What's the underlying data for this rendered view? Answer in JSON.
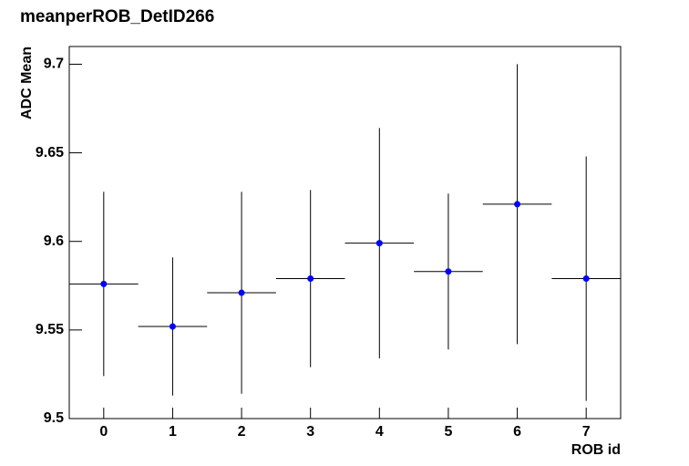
{
  "chart_data": {
    "type": "errorbar",
    "title": "meanperROB_DetID266",
    "x_label": "ROB id",
    "y_label": "ADC Mean",
    "x": [
      0,
      1,
      2,
      3,
      4,
      5,
      6,
      7
    ],
    "values": [
      9.576,
      9.552,
      9.571,
      9.579,
      9.599,
      9.583,
      9.621,
      9.579
    ],
    "errors": [
      0.052,
      0.039,
      0.057,
      0.05,
      0.065,
      0.044,
      0.079,
      0.069
    ],
    "x_half_width": 0.5,
    "color": "#0000ff",
    "xlim": [
      -0.5,
      7.5
    ],
    "xticks": [
      0,
      1,
      2,
      3,
      4,
      5,
      6,
      7
    ],
    "ylim": [
      9.5,
      9.71
    ],
    "yticks": [
      9.5,
      9.55,
      9.6,
      9.65,
      9.7
    ]
  }
}
